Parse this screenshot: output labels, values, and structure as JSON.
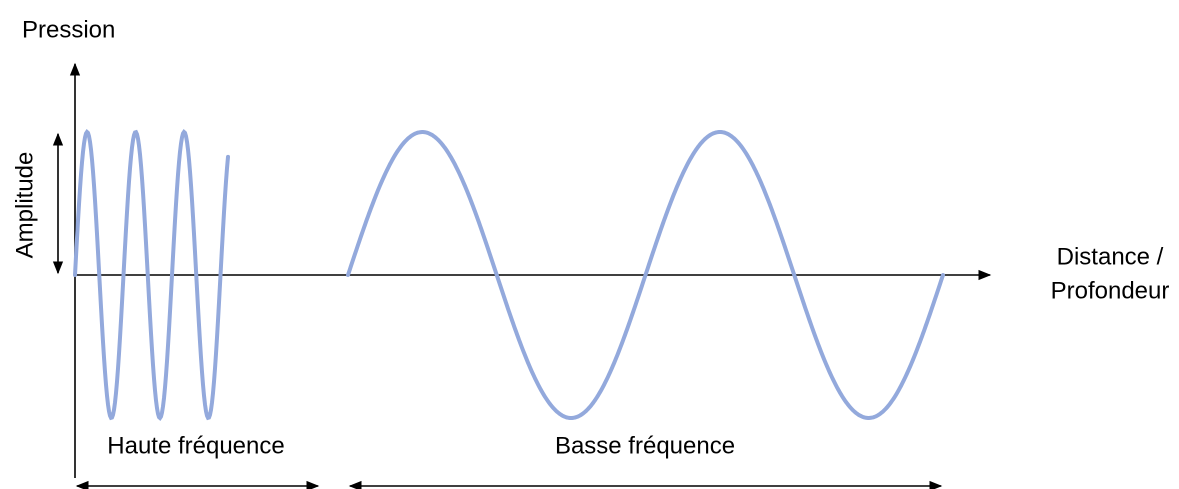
{
  "axes": {
    "y_label": "Pression",
    "x_label_line1": "Distance /",
    "x_label_line2": "Profondeur"
  },
  "amplitude_label": "Amplitude",
  "regions": [
    {
      "label": "Haute fréquence"
    },
    {
      "label": "Basse fréquence"
    }
  ]
}
